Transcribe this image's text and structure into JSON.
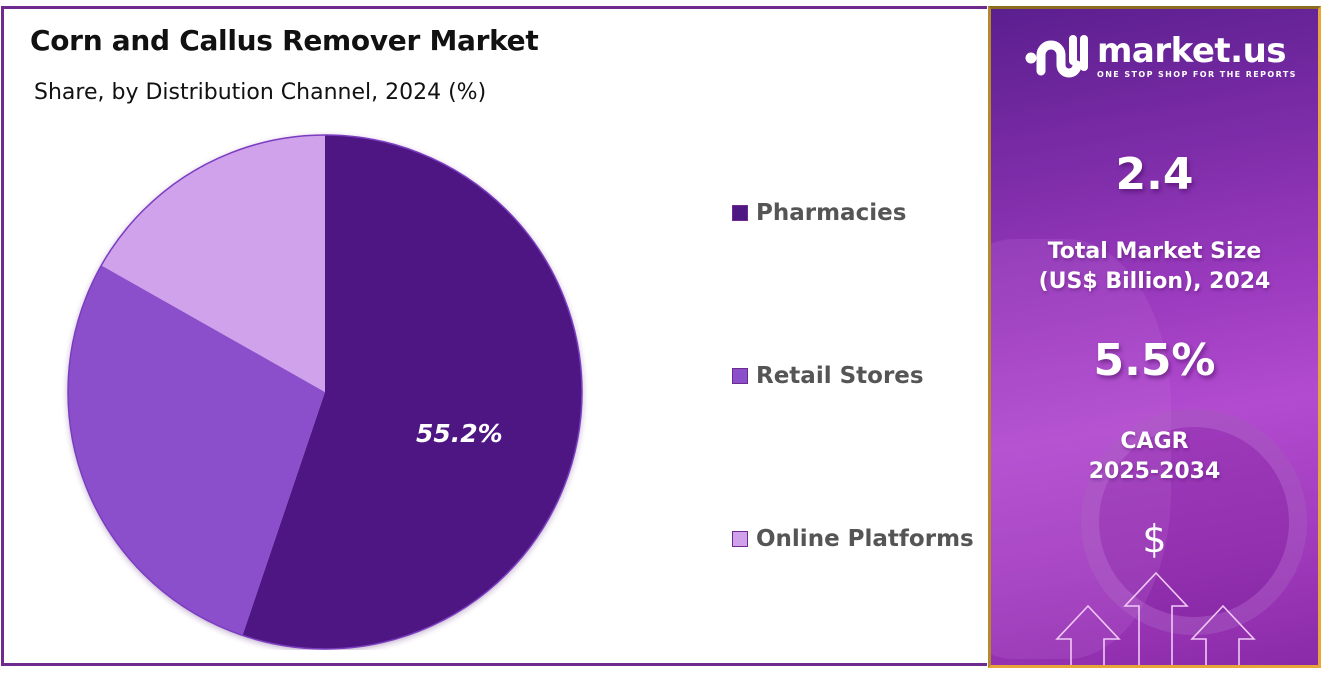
{
  "header": {
    "title": "Corn and Callus Remover Market",
    "subtitle": "Share, by Distribution Channel, 2024 (%)"
  },
  "chart_data": {
    "type": "pie",
    "title": "Corn and Callus Remover Market",
    "subtitle": "Share, by Distribution Channel, 2024 (%)",
    "categories": [
      "Pharmacies",
      "Retail Stores",
      "Online Platforms"
    ],
    "values": [
      55.2,
      28.0,
      16.8
    ],
    "labeled_values": {
      "Pharmacies": "55.2%"
    },
    "colors": [
      "#4E1883",
      "#8B4FCC",
      "#D0A2EC"
    ],
    "start_angle": "12 o'clock, clockwise",
    "legend_position": "right"
  },
  "pie": {
    "label": "55.2%"
  },
  "legend": {
    "items": [
      {
        "label": "Pharmacies",
        "color": "#4E1883"
      },
      {
        "label": "Retail Stores",
        "color": "#8B4FCC"
      },
      {
        "label": "Online Platforms",
        "color": "#D0A2EC"
      }
    ]
  },
  "panel": {
    "brand": "market.us",
    "tagline": "ONE STOP SHOP FOR THE REPORTS",
    "market_size_value": "2.4",
    "market_size_label_1": "Total Market Size",
    "market_size_label_2": "(US$ Billion), 2024",
    "cagr_value": "5.5%",
    "cagr_label_1": "CAGR",
    "cagr_label_2": "2025-2034",
    "dollar_symbol": "$"
  },
  "colors": {
    "frame": "#6E2A8C",
    "panel_border": "#E8A63A",
    "pharmacies": "#4E1883",
    "retail": "#8B4FCC",
    "online": "#D0A2EC"
  }
}
